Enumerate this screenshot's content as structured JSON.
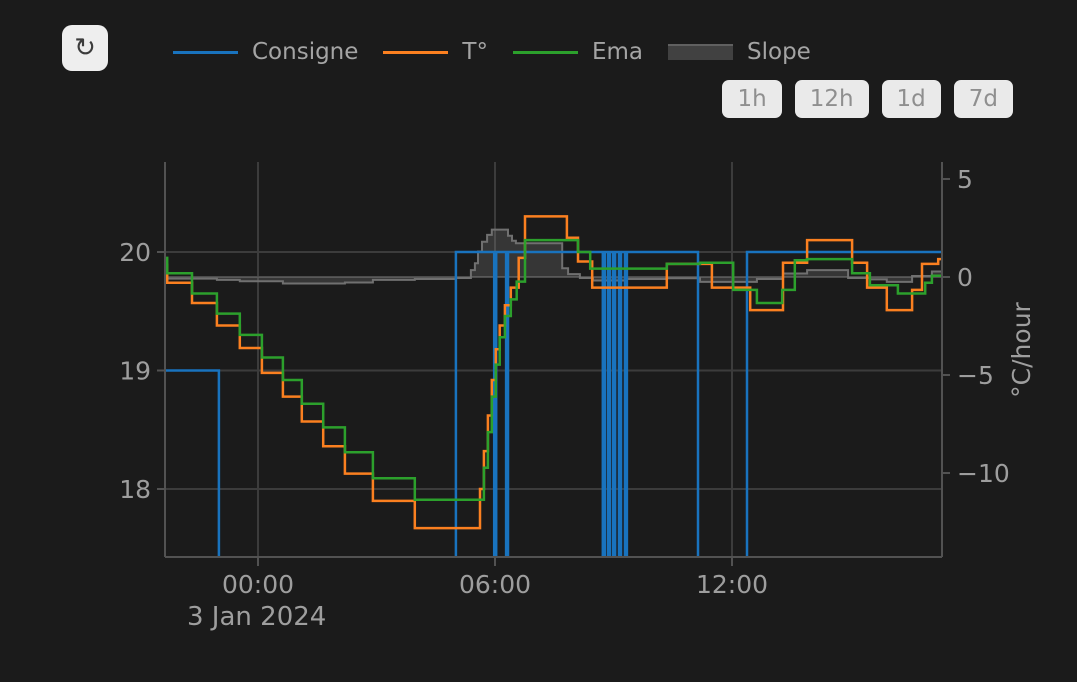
{
  "ui": {
    "background_color": "#1b1b1b",
    "refresh_button": {
      "glyph": "↻"
    },
    "range_buttons": [
      "1h",
      "12h",
      "1d",
      "7d"
    ],
    "button_bg_color": "#eaeaea",
    "button_text_color": "#8f8f8f"
  },
  "chart_data": {
    "type": "line",
    "title": "",
    "grid": true,
    "legend_position": "top",
    "x_axis": {
      "tick_labels": [
        "00:00",
        "06:00",
        "12:00"
      ],
      "tick_hours": [
        0,
        6,
        12
      ],
      "date_label": "3 Jan 2024",
      "range_hours": [
        -2.35,
        17.32
      ]
    },
    "y_axis_left": {
      "title": "",
      "ticks": [
        20,
        19,
        18
      ],
      "tick_labels": [
        "20",
        "19",
        "18"
      ],
      "range": [
        17.42,
        20.76
      ]
    },
    "y_axis_right": {
      "title": "°C/hour",
      "ticks": [
        5,
        0,
        -5,
        -10
      ],
      "tick_labels": [
        "5",
        "0",
        "−5",
        "−10"
      ],
      "range": [
        -14.3,
        5.8
      ],
      "zero_line": 0
    },
    "legend": [
      {
        "name": "Consigne",
        "color": "#1973be",
        "type": "line"
      },
      {
        "name": "T°",
        "color": "#fb8020",
        "type": "line"
      },
      {
        "name": "Ema",
        "color": "#2ca02c",
        "type": "line"
      },
      {
        "name": "Slope",
        "color": "#707070",
        "type": "area"
      }
    ],
    "series": [
      {
        "name": "Slope",
        "axis": "right",
        "shape": "hv",
        "color": "#707070",
        "fill": "tozero",
        "fill_color": "rgba(125,125,125,0.28)",
        "points": [
          [
            -2.35,
            -0.08
          ],
          [
            -1.04,
            -0.15
          ],
          [
            -0.46,
            -0.22
          ],
          [
            0.63,
            -0.33
          ],
          [
            2.2,
            -0.28
          ],
          [
            2.91,
            -0.15
          ],
          [
            3.97,
            -0.1
          ],
          [
            5.01,
            -0.05
          ],
          [
            5.39,
            0.35
          ],
          [
            5.49,
            0.7
          ],
          [
            5.57,
            1.3
          ],
          [
            5.67,
            1.8
          ],
          [
            5.8,
            2.15
          ],
          [
            5.92,
            2.42
          ],
          [
            6.33,
            2.1
          ],
          [
            6.43,
            1.85
          ],
          [
            6.53,
            1.72
          ],
          [
            7.7,
            0.45
          ],
          [
            7.85,
            0.15
          ],
          [
            8.15,
            -0.05
          ],
          [
            8.48,
            -0.18
          ],
          [
            9.29,
            -0.1
          ],
          [
            10.35,
            -0.06
          ],
          [
            11.19,
            -0.25
          ],
          [
            12.63,
            -0.1
          ],
          [
            13.29,
            0.18
          ],
          [
            13.9,
            0.35
          ],
          [
            14.94,
            -0.05
          ],
          [
            15.49,
            -0.12
          ],
          [
            15.92,
            -0.25
          ],
          [
            16.56,
            0.05
          ],
          [
            17.06,
            0.28
          ]
        ]
      },
      {
        "name": "Consigne",
        "axis": "left",
        "shape": "hv",
        "color": "#1973be",
        "points": [
          [
            -2.35,
            19
          ],
          [
            -0.99,
            16.8
          ],
          [
            5.01,
            20
          ],
          [
            5.98,
            16.8
          ],
          [
            6.03,
            20
          ],
          [
            6.28,
            16.8
          ],
          [
            6.33,
            20
          ],
          [
            8.73,
            16.8
          ],
          [
            8.78,
            20
          ],
          [
            8.86,
            16.8
          ],
          [
            8.91,
            20
          ],
          [
            8.99,
            16.8
          ],
          [
            9.04,
            20
          ],
          [
            9.14,
            16.8
          ],
          [
            9.19,
            20
          ],
          [
            9.29,
            16.8
          ],
          [
            9.34,
            20
          ],
          [
            11.14,
            16.8
          ],
          [
            12.38,
            20
          ]
        ]
      },
      {
        "name": "T°",
        "axis": "left",
        "shape": "hv",
        "color": "#fb8020",
        "points": [
          [
            -2.35,
            19.89
          ],
          [
            -2.3,
            19.74
          ],
          [
            -1.67,
            19.57
          ],
          [
            -1.04,
            19.38
          ],
          [
            -0.46,
            19.19
          ],
          [
            0.1,
            18.98
          ],
          [
            0.63,
            18.78
          ],
          [
            1.11,
            18.57
          ],
          [
            1.65,
            18.36
          ],
          [
            2.2,
            18.13
          ],
          [
            2.91,
            17.9
          ],
          [
            3.97,
            17.67
          ],
          [
            5.62,
            18.0
          ],
          [
            5.72,
            18.32
          ],
          [
            5.82,
            18.62
          ],
          [
            5.92,
            18.92
          ],
          [
            6.02,
            19.18
          ],
          [
            6.12,
            19.38
          ],
          [
            6.25,
            19.55
          ],
          [
            6.4,
            19.7
          ],
          [
            6.6,
            19.95
          ],
          [
            6.76,
            20.3
          ],
          [
            7.82,
            20.12
          ],
          [
            8.1,
            19.92
          ],
          [
            8.46,
            19.7
          ],
          [
            10.35,
            19.9
          ],
          [
            11.49,
            19.7
          ],
          [
            12.46,
            19.51
          ],
          [
            13.29,
            19.91
          ],
          [
            13.9,
            20.1
          ],
          [
            15.04,
            19.91
          ],
          [
            15.42,
            19.7
          ],
          [
            15.92,
            19.51
          ],
          [
            16.56,
            19.68
          ],
          [
            16.81,
            19.9
          ],
          [
            17.22,
            19.94
          ]
        ]
      },
      {
        "name": "Ema",
        "axis": "left",
        "shape": "hv",
        "color": "#2ca02c",
        "points": [
          [
            -2.35,
            19.95
          ],
          [
            -2.3,
            19.82
          ],
          [
            -1.67,
            19.65
          ],
          [
            -1.04,
            19.48
          ],
          [
            -0.46,
            19.3
          ],
          [
            0.1,
            19.11
          ],
          [
            0.63,
            18.92
          ],
          [
            1.11,
            18.72
          ],
          [
            1.65,
            18.52
          ],
          [
            2.2,
            18.31
          ],
          [
            2.91,
            18.09
          ],
          [
            3.97,
            17.91
          ],
          [
            5.72,
            18.18
          ],
          [
            5.82,
            18.48
          ],
          [
            5.92,
            18.78
          ],
          [
            6.02,
            19.05
          ],
          [
            6.12,
            19.28
          ],
          [
            6.25,
            19.46
          ],
          [
            6.4,
            19.6
          ],
          [
            6.55,
            19.75
          ],
          [
            6.76,
            20.1
          ],
          [
            8.1,
            20.0
          ],
          [
            8.41,
            19.86
          ],
          [
            10.35,
            19.9
          ],
          [
            11.19,
            19.91
          ],
          [
            12.03,
            19.68
          ],
          [
            12.63,
            19.57
          ],
          [
            13.27,
            19.68
          ],
          [
            13.59,
            19.93
          ],
          [
            13.9,
            19.94
          ],
          [
            15.04,
            19.82
          ],
          [
            15.49,
            19.72
          ],
          [
            16.2,
            19.65
          ],
          [
            16.89,
            19.74
          ],
          [
            17.06,
            19.8
          ]
        ]
      }
    ],
    "colors": {
      "grid": "#3c3c3c",
      "zero_line": "#4c4c4c",
      "axis": "#525252",
      "tick_text": "#9e9e9e"
    }
  }
}
